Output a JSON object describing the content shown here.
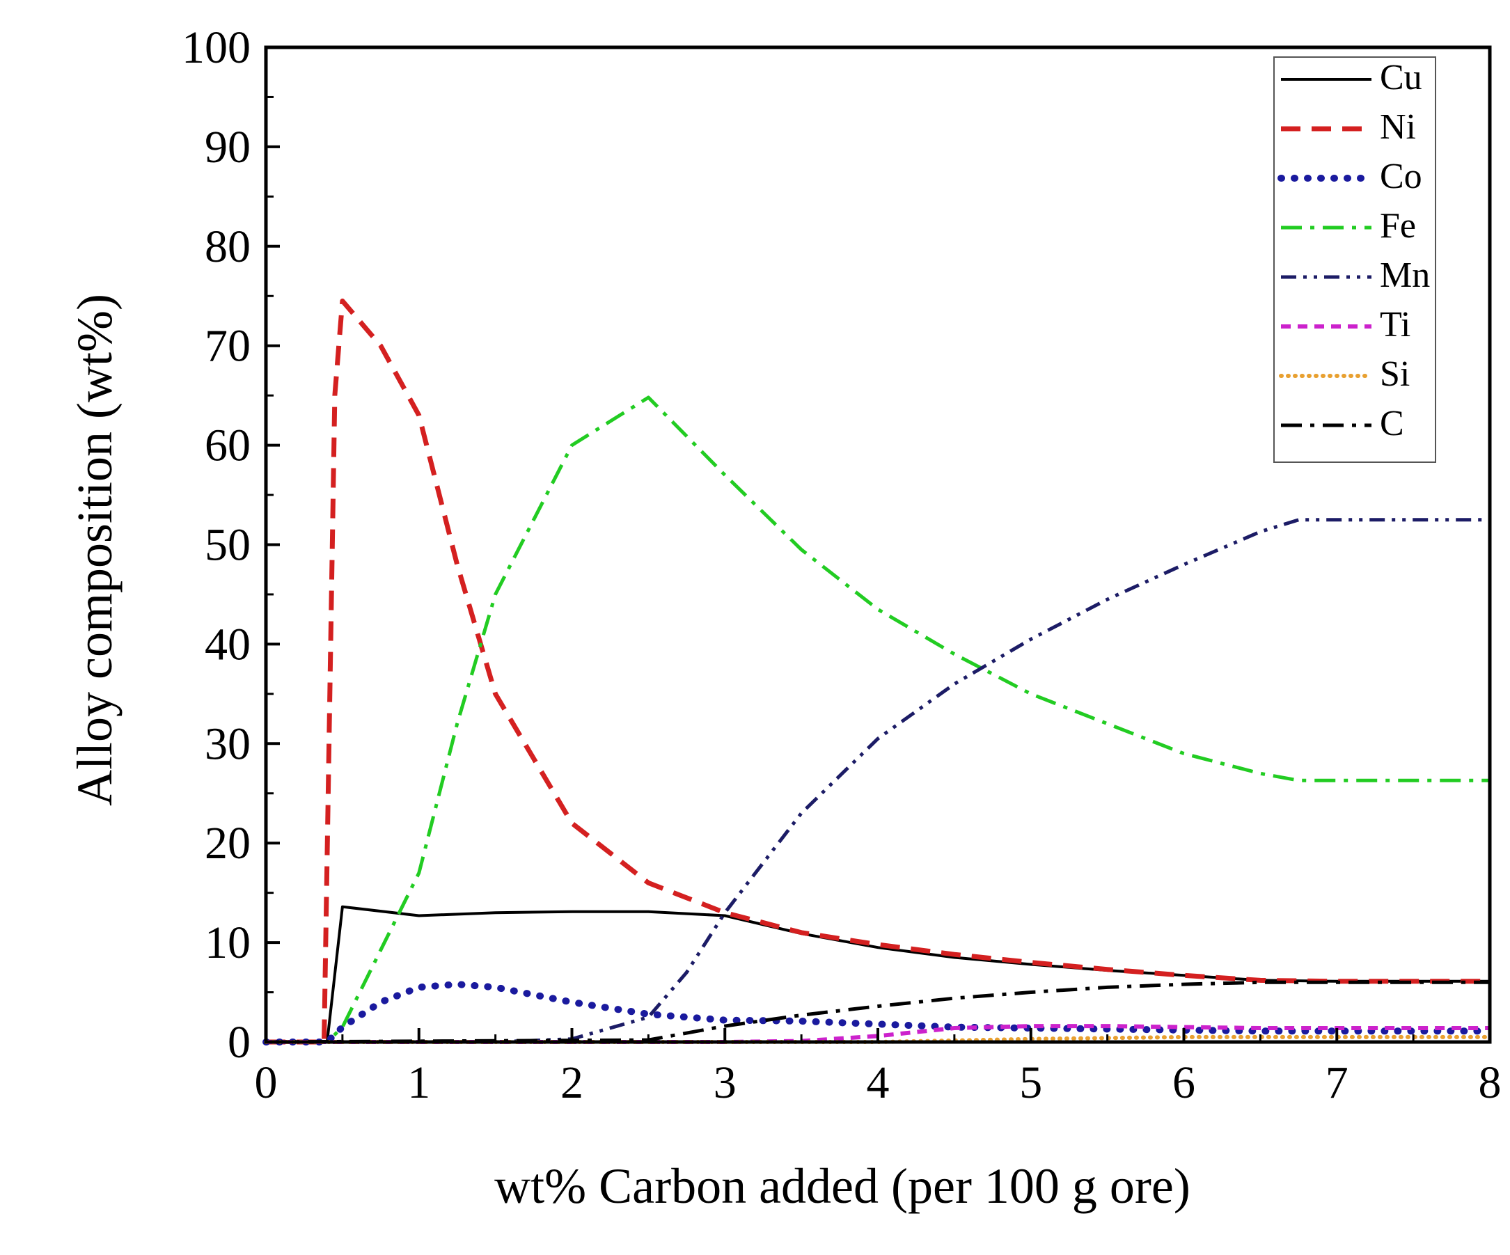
{
  "chart_data": {
    "type": "line",
    "title": "",
    "xlabel": "wt% Carbon added (per 100 g ore)",
    "ylabel": "Alloy composition (wt%)",
    "xlim": [
      0,
      8
    ],
    "ylim": [
      0,
      100
    ],
    "xticks": [
      0,
      1,
      2,
      3,
      4,
      5,
      6,
      7,
      8
    ],
    "xtick_labels": [
      "0",
      "1",
      "2",
      "3",
      "4",
      "5",
      "6",
      "7",
      "8"
    ],
    "yticks": [
      0,
      10,
      20,
      30,
      40,
      50,
      60,
      70,
      80,
      90,
      100
    ],
    "ytick_labels": [
      "0",
      "10",
      "20",
      "30",
      "40",
      "50",
      "60",
      "70",
      "80",
      "90",
      "100"
    ],
    "grid": false,
    "legend_position": "top-right",
    "series": [
      {
        "name": "Cu",
        "color": "#000000",
        "dash": "solid",
        "x": [
          0,
          0.4,
          0.5,
          1,
          1.5,
          2,
          2.5,
          3,
          3.5,
          4,
          4.5,
          5,
          5.5,
          6,
          6.5,
          7,
          7.5,
          8
        ],
        "y": [
          0,
          0,
          13.6,
          12.7,
          13,
          13.1,
          13.1,
          12.7,
          10.9,
          9.5,
          8.5,
          7.8,
          7.2,
          6.7,
          6.2,
          6.1,
          6.1,
          6.1
        ]
      },
      {
        "name": "Ni",
        "color": "#d42020",
        "dash": "dash",
        "x": [
          0,
          0.38,
          0.45,
          0.5,
          0.75,
          1,
          1.25,
          1.5,
          2,
          2.5,
          3,
          3.5,
          4,
          4.5,
          5,
          5.5,
          6,
          6.5,
          7,
          7.5,
          8
        ],
        "y": [
          0,
          0,
          65,
          74.5,
          70,
          63,
          48,
          35,
          22,
          16,
          13,
          11,
          9.8,
          8.8,
          8,
          7.3,
          6.7,
          6.2,
          6.1,
          6.1,
          6.1
        ]
      },
      {
        "name": "Co",
        "color": "#1a1a9e",
        "dash": "dot",
        "x": [
          0,
          0.4,
          0.5,
          0.75,
          1,
          1.25,
          1.5,
          2,
          2.5,
          3,
          3.5,
          4,
          4.5,
          5,
          5.5,
          6,
          6.5,
          7,
          7.5,
          8
        ],
        "y": [
          0,
          0,
          1.5,
          4,
          5.5,
          5.8,
          5.5,
          4,
          2.8,
          2.2,
          2.1,
          1.8,
          1.5,
          1.4,
          1.3,
          1.2,
          1.1,
          1.1,
          1.1,
          1.1
        ]
      },
      {
        "name": "Fe",
        "color": "#22cc22",
        "dash": "dashdot",
        "x": [
          0,
          0.4,
          0.5,
          1,
          1.25,
          1.5,
          2,
          2.5,
          3,
          3.5,
          4,
          4.5,
          5,
          5.5,
          6,
          6.5,
          6.75,
          7,
          7.5,
          8
        ],
        "y": [
          0,
          0,
          1.5,
          17,
          32,
          45,
          60,
          64.8,
          57,
          49.5,
          43.5,
          39,
          35,
          32,
          29,
          27,
          26.3,
          26.3,
          26.3,
          26.3
        ]
      },
      {
        "name": "Mn",
        "color": "#1c1c66",
        "dash": "dashdotdot",
        "x": [
          0,
          1.5,
          2,
          2.5,
          2.75,
          3,
          3.5,
          4,
          4.5,
          5,
          5.5,
          6,
          6.5,
          6.75,
          7,
          7.5,
          8
        ],
        "y": [
          0,
          0,
          0.3,
          2.5,
          7,
          13,
          23,
          30.5,
          36,
          40.5,
          44.5,
          48,
          51.3,
          52.5,
          52.5,
          52.5,
          52.5
        ]
      },
      {
        "name": "Ti",
        "color": "#cc22cc",
        "dash": "shortdash",
        "x": [
          0,
          3,
          3.5,
          4,
          4.5,
          5,
          5.5,
          6,
          6.5,
          7,
          7.5,
          8
        ],
        "y": [
          0,
          0,
          0.1,
          0.6,
          1.4,
          1.6,
          1.6,
          1.5,
          1.4,
          1.4,
          1.4,
          1.4
        ]
      },
      {
        "name": "Si",
        "color": "#e8a030",
        "dash": "dotfine",
        "x": [
          0,
          4,
          5,
          6,
          7,
          8
        ],
        "y": [
          0,
          0,
          0.3,
          0.5,
          0.5,
          0.5
        ]
      },
      {
        "name": "C",
        "color": "#000000",
        "dash": "dashdot",
        "x": [
          0,
          2.5,
          3,
          3.5,
          4,
          4.5,
          5,
          5.5,
          6,
          6.5,
          7,
          7.5,
          8
        ],
        "y": [
          0,
          0.2,
          1.6,
          2.7,
          3.6,
          4.4,
          5,
          5.5,
          5.8,
          6,
          6,
          6,
          6
        ]
      }
    ]
  }
}
